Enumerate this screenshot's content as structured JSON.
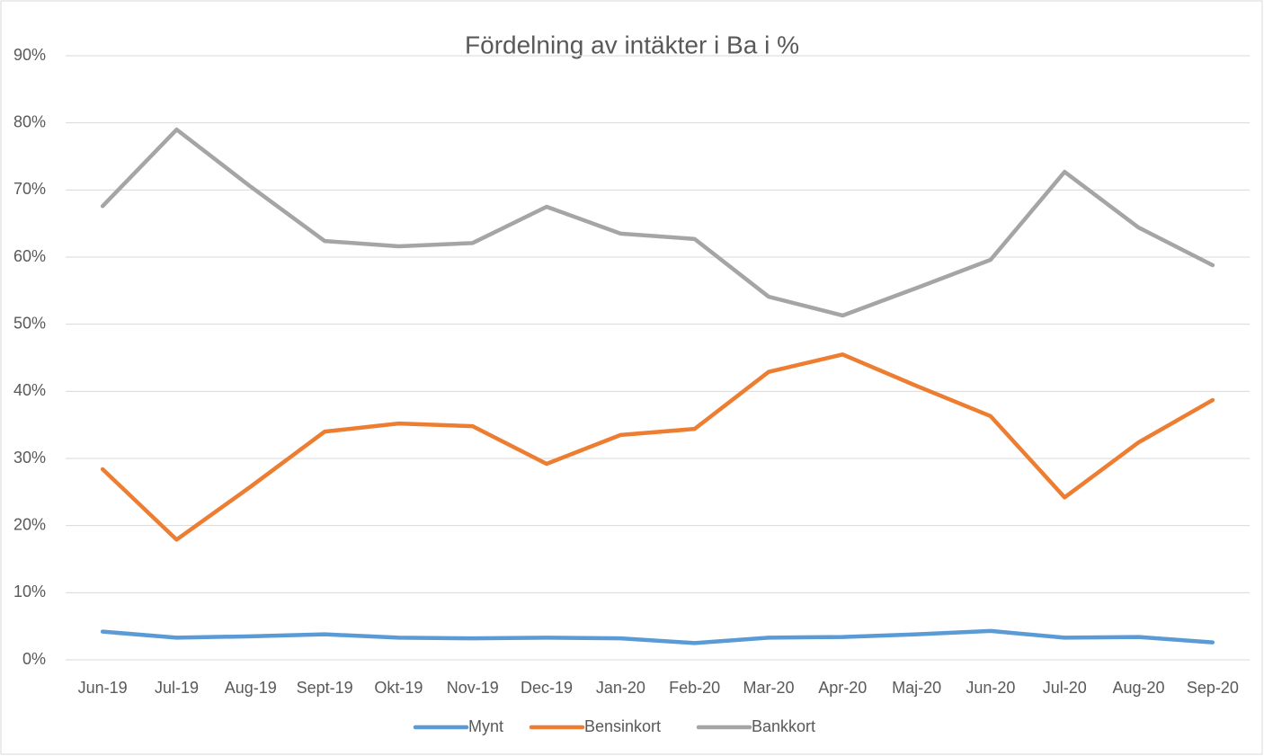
{
  "chart_data": {
    "type": "line",
    "title": "Fördelning av intäkter i Ba i %",
    "categories": [
      "Jun-19",
      "Jul-19",
      "Aug-19",
      "Sept-19",
      "Okt-19",
      "Nov-19",
      "Dec-19",
      "Jan-20",
      "Feb-20",
      "Mar-20",
      "Apr-20",
      "Maj-20",
      "Jun-20",
      "Jul-20",
      "Aug-20",
      "Sep-20"
    ],
    "series": [
      {
        "name": "Mynt",
        "color": "#5b9bd5",
        "values": [
          4.2,
          3.3,
          3.5,
          3.8,
          3.3,
          3.2,
          3.3,
          3.2,
          2.5,
          3.3,
          3.4,
          3.8,
          4.3,
          3.3,
          3.4,
          2.6
        ]
      },
      {
        "name": "Bensinkort",
        "color": "#ed7d31",
        "values": [
          28.4,
          17.9,
          25.8,
          34.0,
          35.2,
          34.8,
          29.2,
          33.5,
          34.4,
          42.9,
          45.5,
          40.8,
          36.3,
          24.2,
          32.4,
          38.7
        ]
      },
      {
        "name": "Bankkort",
        "color": "#a5a5a5",
        "values": [
          67.6,
          79.0,
          70.5,
          62.4,
          61.6,
          62.1,
          67.5,
          63.5,
          62.7,
          54.1,
          51.3,
          55.4,
          59.6,
          72.7,
          64.4,
          58.8
        ]
      }
    ],
    "ylim": [
      0,
      90
    ],
    "yticks": [
      {
        "value": 0,
        "label": "0%"
      },
      {
        "value": 10,
        "label": "10%"
      },
      {
        "value": 20,
        "label": "20%"
      },
      {
        "value": 30,
        "label": "30%"
      },
      {
        "value": 40,
        "label": "40%"
      },
      {
        "value": 50,
        "label": "50%"
      },
      {
        "value": 60,
        "label": "60%"
      },
      {
        "value": 70,
        "label": "70%"
      },
      {
        "value": 80,
        "label": "80%"
      },
      {
        "value": 90,
        "label": "90%"
      }
    ],
    "grid": true,
    "legend": "bottom"
  }
}
